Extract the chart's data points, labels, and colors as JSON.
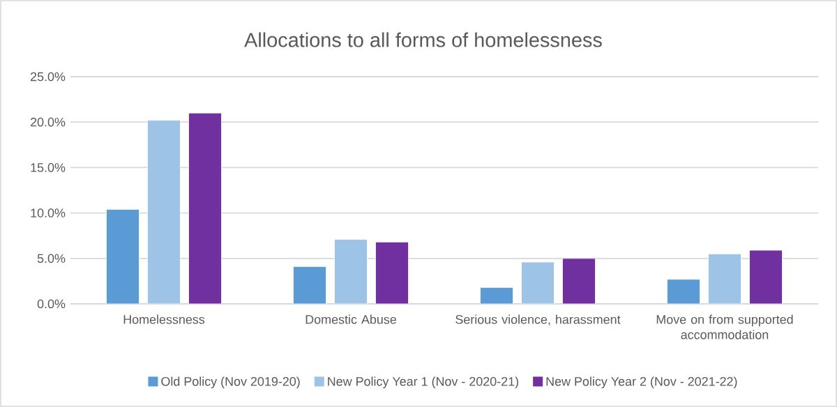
{
  "chart_data": {
    "type": "bar",
    "title": "Allocations to all forms of homelessness",
    "categories": [
      "Homelessness",
      "Domestic Abuse",
      "Serious violence, harassment",
      "Move on from supported accommodation"
    ],
    "series": [
      {
        "name": "Old Policy (Nov 2019-20)",
        "color": "#5b9bd5",
        "values": [
          10.4,
          4.1,
          1.8,
          2.7
        ]
      },
      {
        "name": "New Policy Year 1 (Nov - 2020-21)",
        "color": "#9dc3e6",
        "values": [
          20.2,
          7.1,
          4.6,
          5.5
        ]
      },
      {
        "name": "New Policy Year 2 (Nov - 2021-22)",
        "color": "#7030a0",
        "values": [
          21.0,
          6.8,
          5.0,
          5.9
        ]
      }
    ],
    "ylim": [
      0,
      25
    ],
    "yticks": [
      {
        "value": 0,
        "label": "0.0%"
      },
      {
        "value": 5,
        "label": "5.0%"
      },
      {
        "value": 10,
        "label": "10.0%"
      },
      {
        "value": 15,
        "label": "15.0%"
      },
      {
        "value": 20,
        "label": "20.0%"
      },
      {
        "value": 25,
        "label": "25.0%"
      }
    ],
    "grid": "y",
    "legend": "bottom"
  }
}
